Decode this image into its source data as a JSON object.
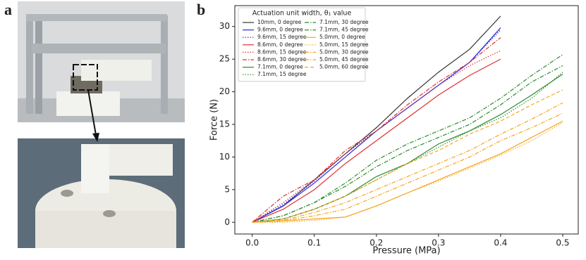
{
  "panel_labels": [
    "a",
    "b"
  ],
  "chart_data": {
    "type": "line",
    "xlabel": "Pressure (MPa)",
    "ylabel": "Force (N)",
    "legend_title": "Actuation unit width, θ₁ value",
    "legend": "upper left",
    "xlim": [
      -0.028,
      0.525
    ],
    "ylim": [
      -1.8,
      33.2
    ],
    "xticks": [
      {
        "value": 0,
        "label": "0.0"
      },
      0.1,
      0.2,
      0.3,
      0.4,
      0.5
    ],
    "yticks": [
      0,
      5,
      10,
      15,
      20,
      25,
      30
    ],
    "series": [
      {
        "name": "10mm, 0 degree",
        "color": "#333333",
        "linestyle": "solid",
        "x": [
          0,
          0.05,
          0.1,
          0.15,
          0.2,
          0.25,
          0.3,
          0.35,
          0.4
        ],
        "values": [
          0,
          2.5,
          6.5,
          10.5,
          14.5,
          19,
          23,
          26.5,
          31.6
        ]
      },
      {
        "name": "9.6mm, 0 degree",
        "color": "#2b2bd6",
        "linestyle": "solid",
        "x": [
          0,
          0.05,
          0.1,
          0.15,
          0.2,
          0.25,
          0.3,
          0.35,
          0.4
        ],
        "values": [
          0,
          2.5,
          6,
          10,
          14,
          17.5,
          21,
          24.5,
          29.8
        ]
      },
      {
        "name": "9.6mm, 15 degree",
        "color": "#2b2bd6",
        "linestyle": "dotted",
        "x": [
          0,
          0.05,
          0.1,
          0.15,
          0.2,
          0.25,
          0.3,
          0.35,
          0.4
        ],
        "values": [
          0,
          2.7,
          6.3,
          10.5,
          14,
          17.5,
          21,
          24.5,
          29.5
        ]
      },
      {
        "name": "8.6mm, 0 degree",
        "color": "#e03030",
        "linestyle": "solid",
        "x": [
          0,
          0.05,
          0.1,
          0.15,
          0.2,
          0.25,
          0.3,
          0.35,
          0.4
        ],
        "values": [
          0,
          2,
          5,
          9,
          12.5,
          16,
          19.5,
          22.5,
          25
        ]
      },
      {
        "name": "8.6mm, 15 degree",
        "color": "#e03030",
        "linestyle": "dotted",
        "x": [
          0,
          0.05,
          0.1,
          0.15,
          0.2,
          0.25,
          0.3,
          0.35,
          0.4
        ],
        "values": [
          0,
          3,
          6.5,
          10.5,
          14,
          17.5,
          21,
          24,
          26.3
        ]
      },
      {
        "name": "8.6mm, 30 degree",
        "color": "#e03030",
        "linestyle": "dashdot",
        "x": [
          0,
          0.05,
          0.1,
          0.15,
          0.2,
          0.25,
          0.3,
          0.35,
          0.4
        ],
        "values": [
          0,
          4,
          6.5,
          11,
          14,
          18,
          21.5,
          24.5,
          28.3
        ]
      },
      {
        "name": "7.1mm, 0 degree",
        "color": "#2e8b2e",
        "linestyle": "solid",
        "x": [
          0,
          0.05,
          0.1,
          0.15,
          0.2,
          0.25,
          0.3,
          0.35,
          0.4,
          0.45,
          0.5
        ],
        "values": [
          0,
          0.5,
          2,
          4,
          7,
          9,
          12,
          14,
          16.5,
          19.5,
          22.7
        ]
      },
      {
        "name": "7.1mm, 15 degree",
        "color": "#2e8b2e",
        "linestyle": "dotted",
        "x": [
          0,
          0.05,
          0.1,
          0.15,
          0.2,
          0.25,
          0.3,
          0.35,
          0.4,
          0.45,
          0.5
        ],
        "values": [
          0,
          0.5,
          2,
          4,
          6.5,
          9,
          11.5,
          14,
          16,
          19,
          23
        ]
      },
      {
        "name": "7.1mm, 30 degree",
        "color": "#2e8b2e",
        "linestyle": "dashdot",
        "x": [
          0,
          0.05,
          0.1,
          0.15,
          0.2,
          0.25,
          0.3,
          0.35,
          0.4,
          0.45,
          0.5
        ],
        "values": [
          0,
          1,
          3,
          5.5,
          8.5,
          11,
          13,
          15,
          18,
          21.5,
          24
        ]
      },
      {
        "name": "7.1mm, 45 degree",
        "color": "#2e8b2e",
        "linestyle": "dashdot",
        "x": [
          0,
          0.05,
          0.1,
          0.15,
          0.2,
          0.25,
          0.3,
          0.35,
          0.4,
          0.45,
          0.5
        ],
        "values": [
          0,
          1,
          3,
          6,
          9.5,
          12,
          14,
          16,
          19,
          22.5,
          25.7
        ]
      },
      {
        "name": "5.0mm, 0 degree",
        "color": "#f5a623",
        "linestyle": "solid",
        "x": [
          0,
          0.05,
          0.1,
          0.15,
          0.2,
          0.25,
          0.3,
          0.35,
          0.4,
          0.45,
          0.5
        ],
        "values": [
          0,
          0.2,
          0.5,
          0.8,
          2.5,
          4.5,
          6.5,
          8.5,
          10.5,
          13,
          15.5
        ]
      },
      {
        "name": "5.0mm, 15 degree",
        "color": "#f5a623",
        "linestyle": "dotted",
        "x": [
          0,
          0.05,
          0.1,
          0.15,
          0.2,
          0.25,
          0.3,
          0.35,
          0.4,
          0.45,
          0.5
        ],
        "values": [
          0,
          0,
          0.3,
          0.8,
          2.5,
          4.5,
          6.3,
          8.3,
          10.3,
          12.5,
          15.3
        ]
      },
      {
        "name": "5.0mm, 30 degree",
        "color": "#f5a623",
        "linestyle": "dashdot",
        "x": [
          0,
          0.05,
          0.1,
          0.15,
          0.2,
          0.25,
          0.3,
          0.35,
          0.4,
          0.45,
          0.5
        ],
        "values": [
          0,
          0.2,
          1,
          2,
          4,
          6,
          8,
          10,
          12.5,
          14.5,
          16.7
        ]
      },
      {
        "name": "5.0mm, 45 degree",
        "color": "#f5a623",
        "linestyle": "dashdot",
        "x": [
          0,
          0.05,
          0.1,
          0.15,
          0.2,
          0.25,
          0.3,
          0.35,
          0.4,
          0.45,
          0.5
        ],
        "values": [
          0,
          0.3,
          1.5,
          3,
          5,
          7,
          9,
          11,
          13.5,
          15.8,
          18.3
        ]
      },
      {
        "name": "5.0mm, 60 degree",
        "color": "#f5a623",
        "linestyle": "dashed",
        "x": [
          0,
          0.05,
          0.1,
          0.15,
          0.2,
          0.25,
          0.3,
          0.35,
          0.4,
          0.45,
          0.5
        ],
        "values": [
          0,
          0.5,
          2,
          4,
          6.5,
          9,
          11,
          13.5,
          15.5,
          18,
          20.3
        ]
      }
    ]
  }
}
